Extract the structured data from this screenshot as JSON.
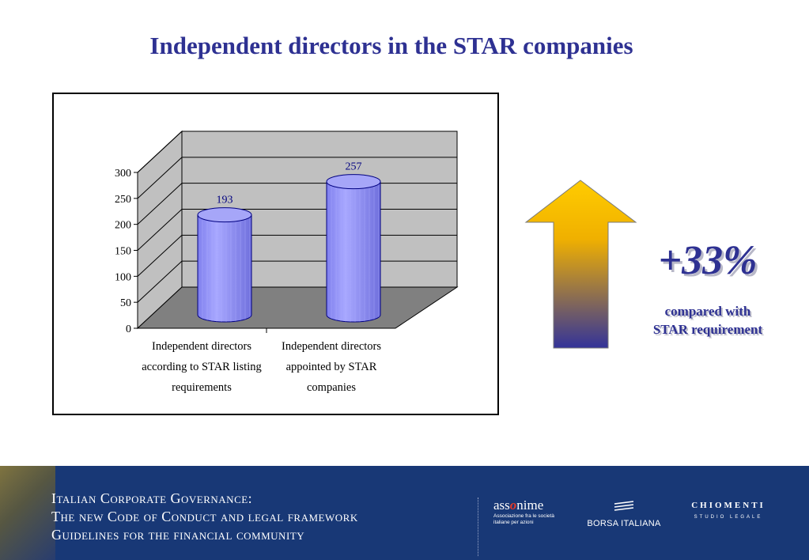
{
  "slide": {
    "title": "Independent directors in the STAR companies"
  },
  "chart_data": {
    "type": "bar",
    "categories": [
      [
        "Independent directors",
        "according to STAR listing",
        "requirements"
      ],
      [
        "Independent directors",
        "appointed by STAR",
        "companies"
      ]
    ],
    "values": [
      193,
      257
    ],
    "data_labels": [
      "193",
      "257"
    ],
    "yticks": [
      "0",
      "50",
      "100",
      "150",
      "200",
      "250",
      "300"
    ],
    "ylim": [
      0,
      300
    ],
    "style": "3d-cylinder",
    "grid": true,
    "colors": {
      "bar": "#9999ff",
      "bar_edge": "#000080",
      "wall": "#c0c0c0",
      "floor": "#808080"
    }
  },
  "callout": {
    "change": "+33%",
    "note_line1": "compared with",
    "note_line2": "STAR requirement",
    "arrow_colors": {
      "top": "#ffcc00",
      "bottom": "#333399"
    }
  },
  "footer": {
    "line1": "Italian Corporate Governance:",
    "line2": "The new Code of Conduct and legal framework",
    "line3": "Guidelines for the financial community",
    "logo1": {
      "brand_pre": "ass",
      "brand_o": "o",
      "brand_post": "nime",
      "sub": "Associazione fra le società italiane per azioni"
    },
    "logo2": {
      "name": "BORSA ITALIANA"
    },
    "logo3": {
      "name": "CHIOMENTI",
      "sub": "STUDIO LEGALE"
    }
  }
}
